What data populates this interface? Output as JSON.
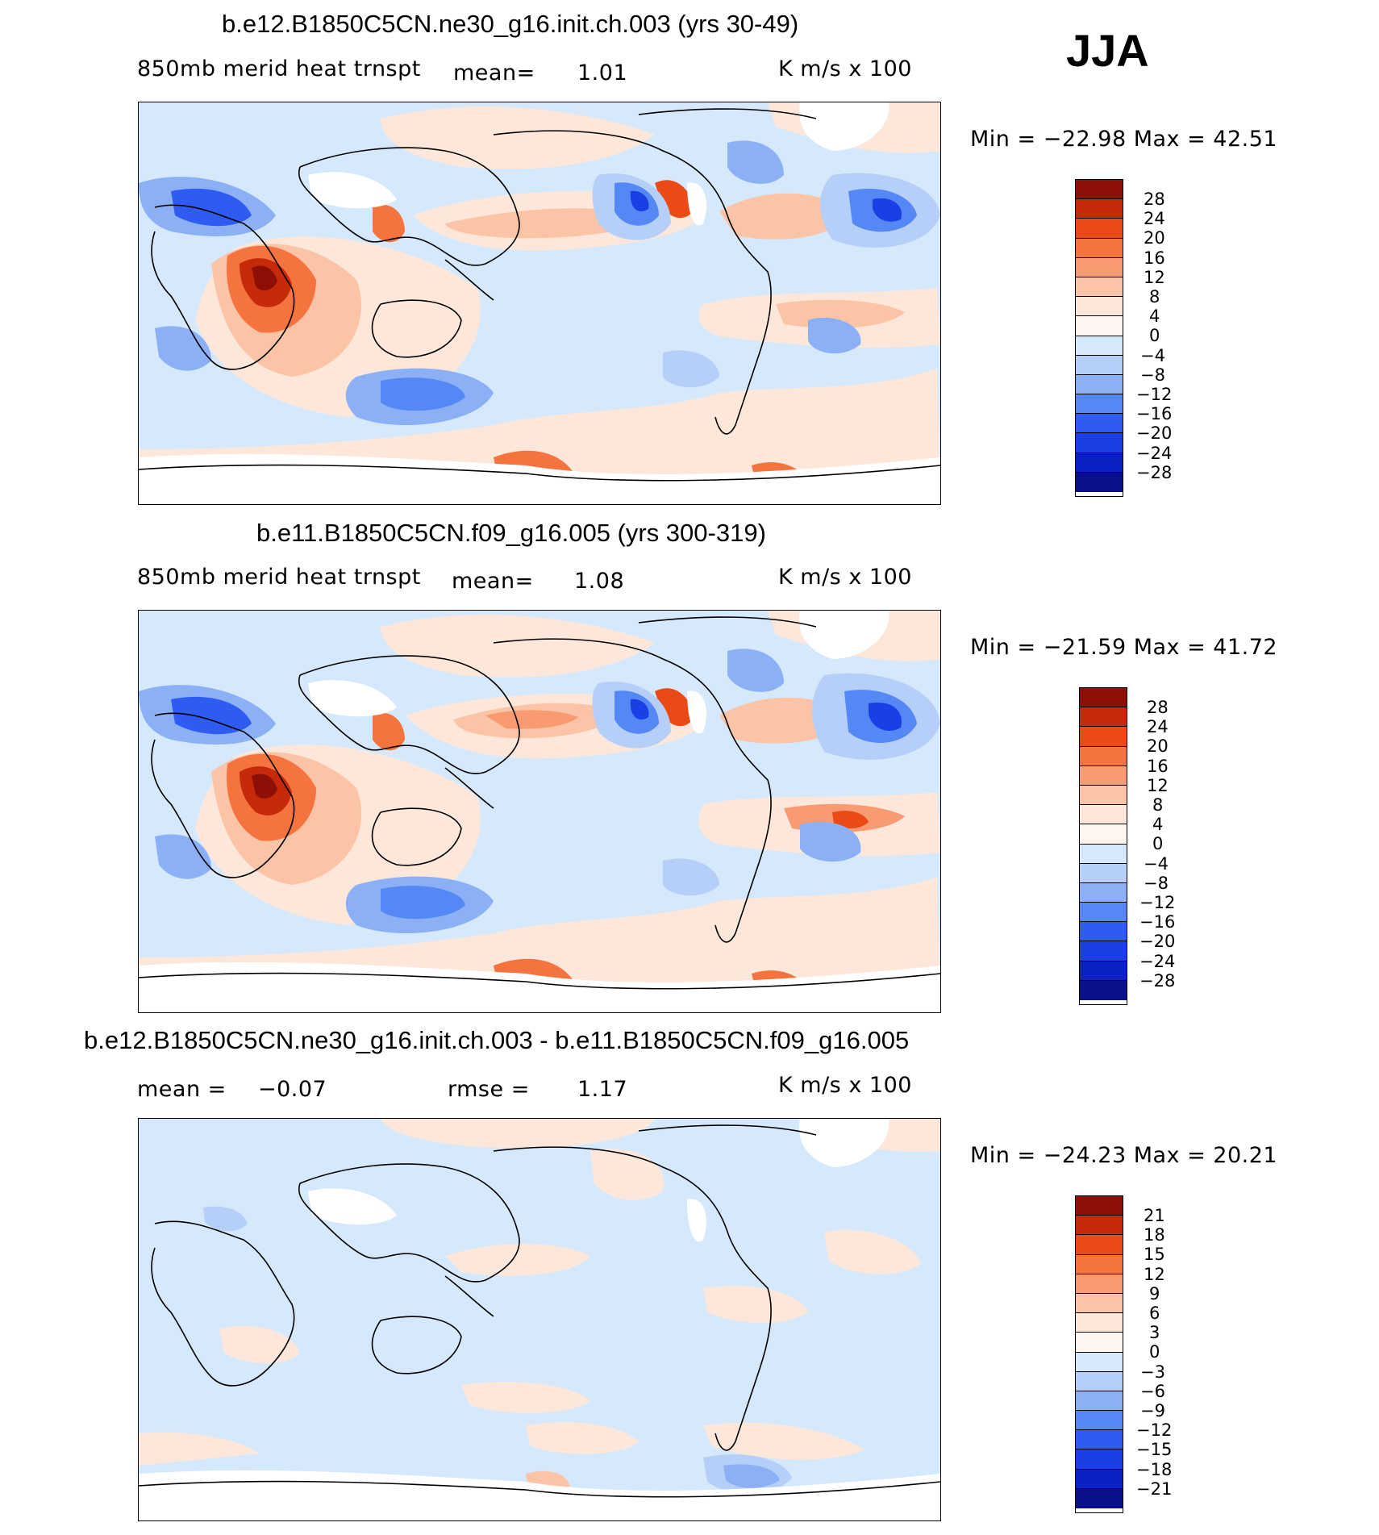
{
  "season": "JJA",
  "palette": {
    "diverging": [
      "#0b0f8a",
      "#0a22c4",
      "#1a3fe6",
      "#2f5cf0",
      "#5588f4",
      "#8cb0f6",
      "#b6cff8",
      "#d6e8fb",
      "#fde7da",
      "#fbc4a6",
      "#f89b72",
      "#f5733f",
      "#ea4a15",
      "#c52a0a",
      "#8e0f06"
    ],
    "land_mask": "#ffffff",
    "coastline": "#000000"
  },
  "panels": [
    {
      "title": "b.e12.B1850C5CN.ne30_g16.init.ch.003 (yrs 30-49)",
      "variable": "850mb  merid  heat  trnspt",
      "mean_label": "mean=",
      "mean_value": "1.01",
      "units": "K  m/s  x  100",
      "min_max": "Min  =  −22.98  Max  =    42.51",
      "levels": [
        "28",
        "24",
        "20",
        "16",
        "12",
        "8",
        "4",
        "0",
        "−4",
        "−8",
        "−12",
        "−16",
        "−20",
        "−24",
        "−28"
      ]
    },
    {
      "title": "b.e11.B1850C5CN.f09_g16.005 (yrs 300-319)",
      "variable": "850mb  merid  heat  trnspt",
      "mean_label": "mean=",
      "mean_value": "1.08",
      "units": "K  m/s  x  100",
      "min_max": "Min  =  −21.59  Max  =    41.72",
      "levels": [
        "28",
        "24",
        "20",
        "16",
        "12",
        "8",
        "4",
        "0",
        "−4",
        "−8",
        "−12",
        "−16",
        "−20",
        "−24",
        "−28"
      ]
    },
    {
      "title": "b.e12.B1850C5CN.ne30_g16.init.ch.003 - b.e11.B1850C5CN.f09_g16.005",
      "mean_label": "mean  =",
      "mean_value": "−0.07",
      "rmse_label": "rmse  =",
      "rmse_value": "1.17",
      "units": "K  m/s  x  100",
      "min_max": "Min  =  −24.23  Max  =    20.21",
      "levels": [
        "21",
        "18",
        "15",
        "12",
        "9",
        "6",
        "3",
        "0",
        "−3",
        "−6",
        "−9",
        "−12",
        "−15",
        "−18",
        "−21"
      ]
    }
  ]
}
